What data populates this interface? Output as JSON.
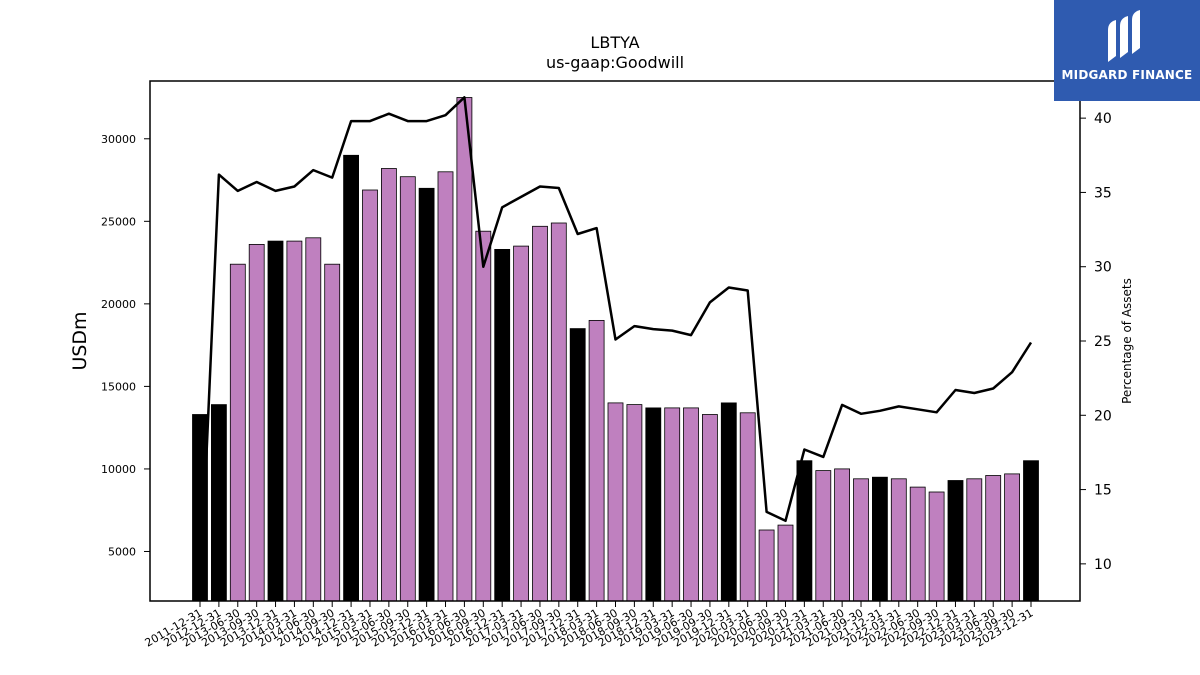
{
  "logo": {
    "text": "MIDGARD FINANCE"
  },
  "chart_data": {
    "type": "bar+line",
    "title": "LBTYA",
    "subtitle": "us-gaap:Goodwill",
    "ylabel": "USDm",
    "y2label": "Percentage of Assets",
    "ylim": [
      2000,
      33500
    ],
    "y2lim": [
      7.5,
      42.5
    ],
    "yticks": [
      5000,
      10000,
      15000,
      20000,
      25000,
      30000
    ],
    "y2ticks": [
      10,
      15,
      20,
      25,
      30,
      35,
      40
    ],
    "colors": {
      "annual_bar": "#000000",
      "quarter_bar": "#bf80bf",
      "line": "#000000"
    },
    "categories": [
      "2011-12-31",
      "2012-12-31",
      "2013-06-30",
      "2013-09-30",
      "2013-12-31",
      "2014-03-31",
      "2014-06-30",
      "2014-09-30",
      "2014-12-31",
      "2015-03-31",
      "2015-06-30",
      "2015-09-30",
      "2015-12-31",
      "2016-03-31",
      "2016-06-30",
      "2016-09-30",
      "2016-12-31",
      "2017-03-31",
      "2017-06-30",
      "2017-09-30",
      "2017-12-31",
      "2018-03-31",
      "2018-06-30",
      "2018-09-30",
      "2018-12-31",
      "2019-03-31",
      "2019-06-30",
      "2019-09-30",
      "2019-12-31",
      "2020-03-31",
      "2020-06-30",
      "2020-09-30",
      "2020-12-31",
      "2021-03-31",
      "2021-06-30",
      "2021-09-30",
      "2021-12-31",
      "2022-03-31",
      "2022-06-30",
      "2022-09-30",
      "2022-12-31",
      "2023-03-31",
      "2023-06-30",
      "2023-09-30",
      "2023-12-31"
    ],
    "series": [
      {
        "name": "Goodwill",
        "values": [
          13300,
          13900,
          22400,
          23600,
          23800,
          23800,
          24000,
          22400,
          29000,
          26900,
          28200,
          27700,
          27000,
          28000,
          32500,
          24400,
          23300,
          23500,
          24700,
          24900,
          18500,
          19000,
          14000,
          13900,
          13700,
          13700,
          13700,
          13300,
          14000,
          13400,
          6300,
          6600,
          10500,
          9900,
          10000,
          9400,
          9500,
          9400,
          8900,
          8600,
          9300,
          9400,
          9600,
          9700,
          10500
        ],
        "annual": [
          true,
          true,
          false,
          false,
          true,
          false,
          false,
          false,
          true,
          false,
          false,
          false,
          true,
          false,
          false,
          false,
          true,
          false,
          false,
          false,
          true,
          false,
          false,
          false,
          true,
          false,
          false,
          false,
          true,
          false,
          false,
          false,
          true,
          false,
          false,
          false,
          true,
          false,
          false,
          false,
          true,
          false,
          false,
          false,
          true
        ]
      },
      {
        "name": "Percentage of Assets",
        "values": [
          7.5,
          36.2,
          35.1,
          35.7,
          35.1,
          35.4,
          36.5,
          36.0,
          39.8,
          39.8,
          40.3,
          39.8,
          39.8,
          40.2,
          41.4,
          30.0,
          34.0,
          34.7,
          35.4,
          35.3,
          32.2,
          32.6,
          25.1,
          26.0,
          25.8,
          25.7,
          25.4,
          27.6,
          28.6,
          28.4,
          13.5,
          12.9,
          17.7,
          17.2,
          20.7,
          20.1,
          20.3,
          20.6,
          20.4,
          20.2,
          21.7,
          21.5,
          21.8,
          22.9,
          24.9
        ]
      }
    ]
  }
}
